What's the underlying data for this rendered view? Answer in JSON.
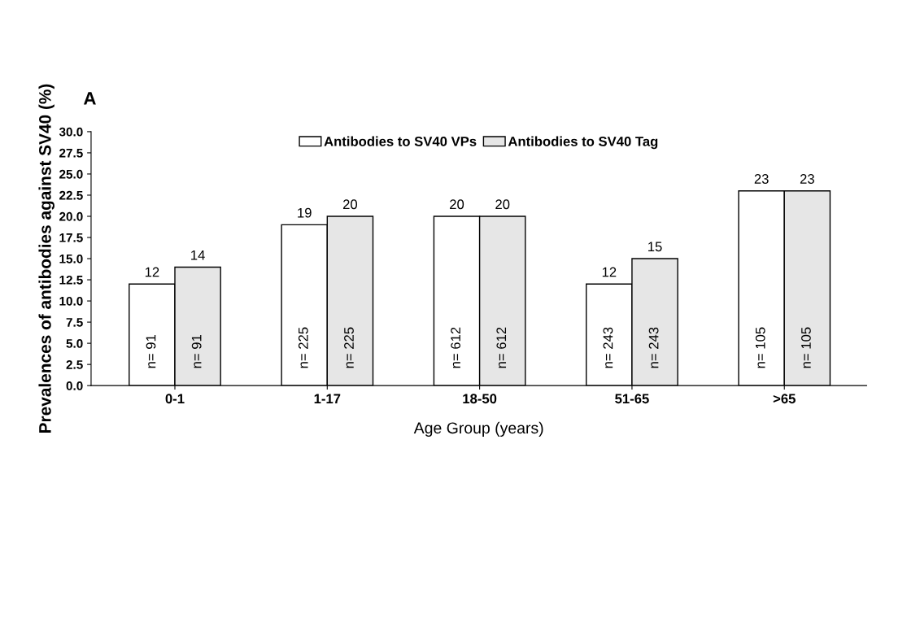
{
  "chart_data": {
    "type": "bar",
    "title": "A",
    "xlabel": "Age Group (years)",
    "ylabel": "Prevalences of antibodies against SV40 (%)",
    "categories": [
      "0-1",
      "1-17",
      "18-50",
      "51-65",
      ">65"
    ],
    "series": [
      {
        "name": "Antibodies to SV40 VPs",
        "color": "#ffffff",
        "values": [
          12,
          19,
          20,
          12,
          23
        ]
      },
      {
        "name": "Antibodies to SV40 Tag",
        "color": "#e6e6e6",
        "values": [
          14,
          20,
          20,
          15,
          23
        ]
      }
    ],
    "ylim": [
      0,
      30
    ],
    "yticks": [
      {
        "value": 0,
        "label": "0.0"
      },
      {
        "value": 2.5,
        "label": "2.5"
      },
      {
        "value": 5,
        "label": "5.0"
      },
      {
        "value": 7.5,
        "label": "7.5"
      },
      {
        "value": 10,
        "label": "10.0"
      },
      {
        "value": 12.5,
        "label": "12.5"
      },
      {
        "value": 15,
        "label": "15.0"
      },
      {
        "value": 17.5,
        "label": "17.5"
      },
      {
        "value": 20,
        "label": "20.0"
      },
      {
        "value": 22.5,
        "label": "22.5"
      },
      {
        "value": 25,
        "label": "25.0"
      },
      {
        "value": 27.5,
        "label": "27.5"
      },
      {
        "value": 30,
        "label": "30.0"
      }
    ],
    "data_labels": true,
    "annotations": [
      "n= 91",
      "n= 91",
      "n= 225",
      "n= 225",
      "n= 612",
      "n= 612",
      "n= 243",
      "n= 243",
      "n= 105",
      "n= 105"
    ],
    "grid": false,
    "legend": "top"
  }
}
